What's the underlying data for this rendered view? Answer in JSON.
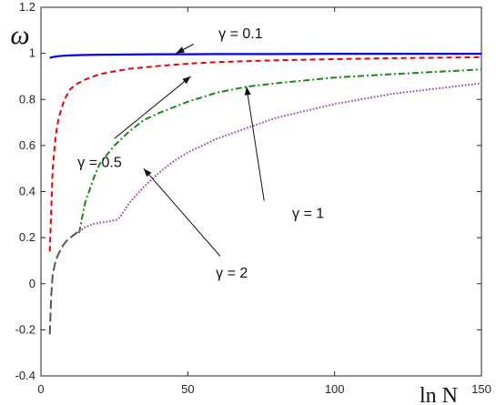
{
  "chart_data": {
    "type": "line",
    "xlabel": "ln N",
    "ylabel": "ω",
    "xlim": [
      0,
      150
    ],
    "ylim": [
      -0.4,
      1.2
    ],
    "xticks": [
      "0",
      "50",
      "100",
      "150"
    ],
    "yticks": [
      "-0.4",
      "-0.2",
      "0",
      "0.2",
      "0.4",
      "0.6",
      "0.8",
      "1",
      "1.2"
    ],
    "grid": false,
    "legend": "none",
    "series": [
      {
        "color": "#0000ee",
        "dash": "solid",
        "x": [
          3,
          4,
          6,
          8,
          10,
          15,
          20,
          30,
          40,
          50,
          60,
          80,
          100,
          120,
          150
        ],
        "y": [
          0.98,
          0.984,
          0.988,
          0.99,
          0.991,
          0.993,
          0.994,
          0.995,
          0.996,
          0.996,
          0.997,
          0.997,
          0.998,
          0.998,
          0.998
        ]
      },
      {
        "color": "#ee0000",
        "dash": "dashed",
        "x": [
          3,
          4,
          5,
          6,
          8,
          10,
          12,
          15,
          20,
          25,
          30,
          40,
          50,
          60,
          80,
          100,
          120,
          150
        ],
        "y": [
          0.14,
          0.5,
          0.64,
          0.72,
          0.8,
          0.845,
          0.866,
          0.886,
          0.91,
          0.922,
          0.933,
          0.945,
          0.955,
          0.962,
          0.97,
          0.975,
          0.979,
          0.983
        ]
      },
      {
        "color": "#138a13",
        "dash": "dashdot",
        "x": [
          13,
          15,
          18,
          20,
          25,
          30,
          35,
          40,
          50,
          60,
          70,
          80,
          100,
          120,
          150
        ],
        "y": [
          0.22,
          0.35,
          0.46,
          0.52,
          0.6,
          0.66,
          0.71,
          0.74,
          0.79,
          0.83,
          0.855,
          0.87,
          0.895,
          0.91,
          0.93
        ]
      },
      {
        "color": "#9a3fb5",
        "dash": "dotted",
        "x": [
          13,
          15,
          18,
          20,
          23,
          26,
          27,
          28,
          30,
          35,
          40,
          45,
          50,
          60,
          80,
          100,
          120,
          150
        ],
        "y": [
          0.225,
          0.245,
          0.26,
          0.265,
          0.27,
          0.278,
          0.29,
          0.31,
          0.35,
          0.42,
          0.48,
          0.53,
          0.57,
          0.63,
          0.72,
          0.78,
          0.825,
          0.87
        ]
      },
      {
        "color": "#555555",
        "dash": "longdash",
        "x": [
          3,
          3.5,
          4,
          5,
          6,
          7,
          8,
          9,
          10,
          11,
          12,
          13
        ],
        "y": [
          -0.22,
          -0.05,
          0.04,
          0.1,
          0.13,
          0.155,
          0.175,
          0.19,
          0.2,
          0.21,
          0.22,
          0.225
        ]
      }
    ],
    "annotations": [
      {
        "text": "γ = 0.1",
        "label_x": 68,
        "label_y": 1.09,
        "from_x": 52,
        "from_y": 1.04,
        "to_x": 46,
        "to_y": 1.0
      },
      {
        "text": "γ = 0.5",
        "label_x": 20,
        "label_y": 0.53,
        "from_x": 25,
        "from_y": 0.63,
        "to_x": 51,
        "to_y": 0.9
      },
      {
        "text": "γ = 1",
        "label_x": 91,
        "label_y": 0.31,
        "from_x": 76,
        "from_y": 0.36,
        "to_x": 70,
        "to_y": 0.855
      },
      {
        "text": "γ = 2",
        "label_x": 65,
        "label_y": 0.05,
        "from_x": 61,
        "from_y": 0.12,
        "to_x": 35,
        "to_y": 0.5
      }
    ]
  }
}
